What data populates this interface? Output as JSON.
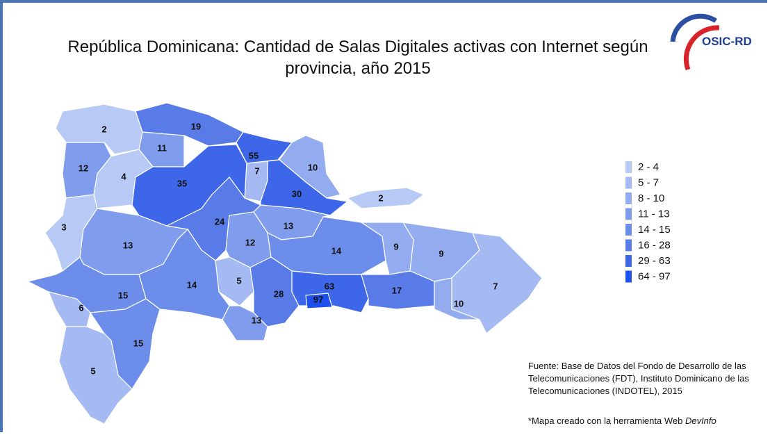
{
  "title": "República Dominicana: Cantidad de Salas Digitales activas con Internet según provincia, año 2015",
  "logo": "OSIC-RD",
  "legend": [
    {
      "label": "2 - 4",
      "color": "#b7c9f5"
    },
    {
      "label": "5 - 7",
      "color": "#a5b9f2"
    },
    {
      "label": "8 - 10",
      "color": "#93abef"
    },
    {
      "label": "11 - 13",
      "color": "#809cec"
    },
    {
      "label": "14 - 15",
      "color": "#6d8dea"
    },
    {
      "label": "16 - 28",
      "color": "#587be7"
    },
    {
      "label": "29 - 63",
      "color": "#3e66e8"
    },
    {
      "label": "64 - 97",
      "color": "#1e50ee"
    }
  ],
  "provinces": [
    {
      "value": 2,
      "color": "#b7c9f5"
    },
    {
      "value": 19,
      "color": "#587be7"
    },
    {
      "value": 11,
      "color": "#809cec"
    },
    {
      "value": 55,
      "color": "#3e66e8"
    },
    {
      "value": 12,
      "color": "#809cec"
    },
    {
      "value": 4,
      "color": "#b7c9f5"
    },
    {
      "value": 7,
      "color": "#a5b9f2"
    },
    {
      "value": 10,
      "color": "#93abef"
    },
    {
      "value": 35,
      "color": "#3e66e8"
    },
    {
      "value": 30,
      "color": "#3e66e8"
    },
    {
      "value": 2,
      "color": "#b7c9f5"
    },
    {
      "value": 3,
      "color": "#b7c9f5"
    },
    {
      "value": 24,
      "color": "#587be7"
    },
    {
      "value": 13,
      "color": "#809cec"
    },
    {
      "value": 13,
      "color": "#809cec"
    },
    {
      "value": 12,
      "color": "#809cec"
    },
    {
      "value": 14,
      "color": "#6d8dea"
    },
    {
      "value": 9,
      "color": "#93abef"
    },
    {
      "value": 9,
      "color": "#93abef"
    },
    {
      "value": 5,
      "color": "#a5b9f2"
    },
    {
      "value": 14,
      "color": "#6d8dea"
    },
    {
      "value": 7,
      "color": "#a5b9f2"
    },
    {
      "value": 15,
      "color": "#6d8dea"
    },
    {
      "value": 28,
      "color": "#587be7"
    },
    {
      "value": 63,
      "color": "#3e66e8"
    },
    {
      "value": 97,
      "color": "#1e50ee"
    },
    {
      "value": 17,
      "color": "#587be7"
    },
    {
      "value": 10,
      "color": "#93abef"
    },
    {
      "value": 6,
      "color": "#a5b9f2"
    },
    {
      "value": 13,
      "color": "#809cec"
    },
    {
      "value": 15,
      "color": "#6d8dea"
    },
    {
      "value": 5,
      "color": "#a5b9f2"
    }
  ],
  "source": "Fuente: Base de Datos del Fondo de Desarrollo de las Telecomunicaciones (FDT), Instituto Dominicano de las Telecomunicaciones (INDOTEL), 2015",
  "note": "*Mapa creado con la herramienta Web",
  "note_tool": "DevInfo"
}
